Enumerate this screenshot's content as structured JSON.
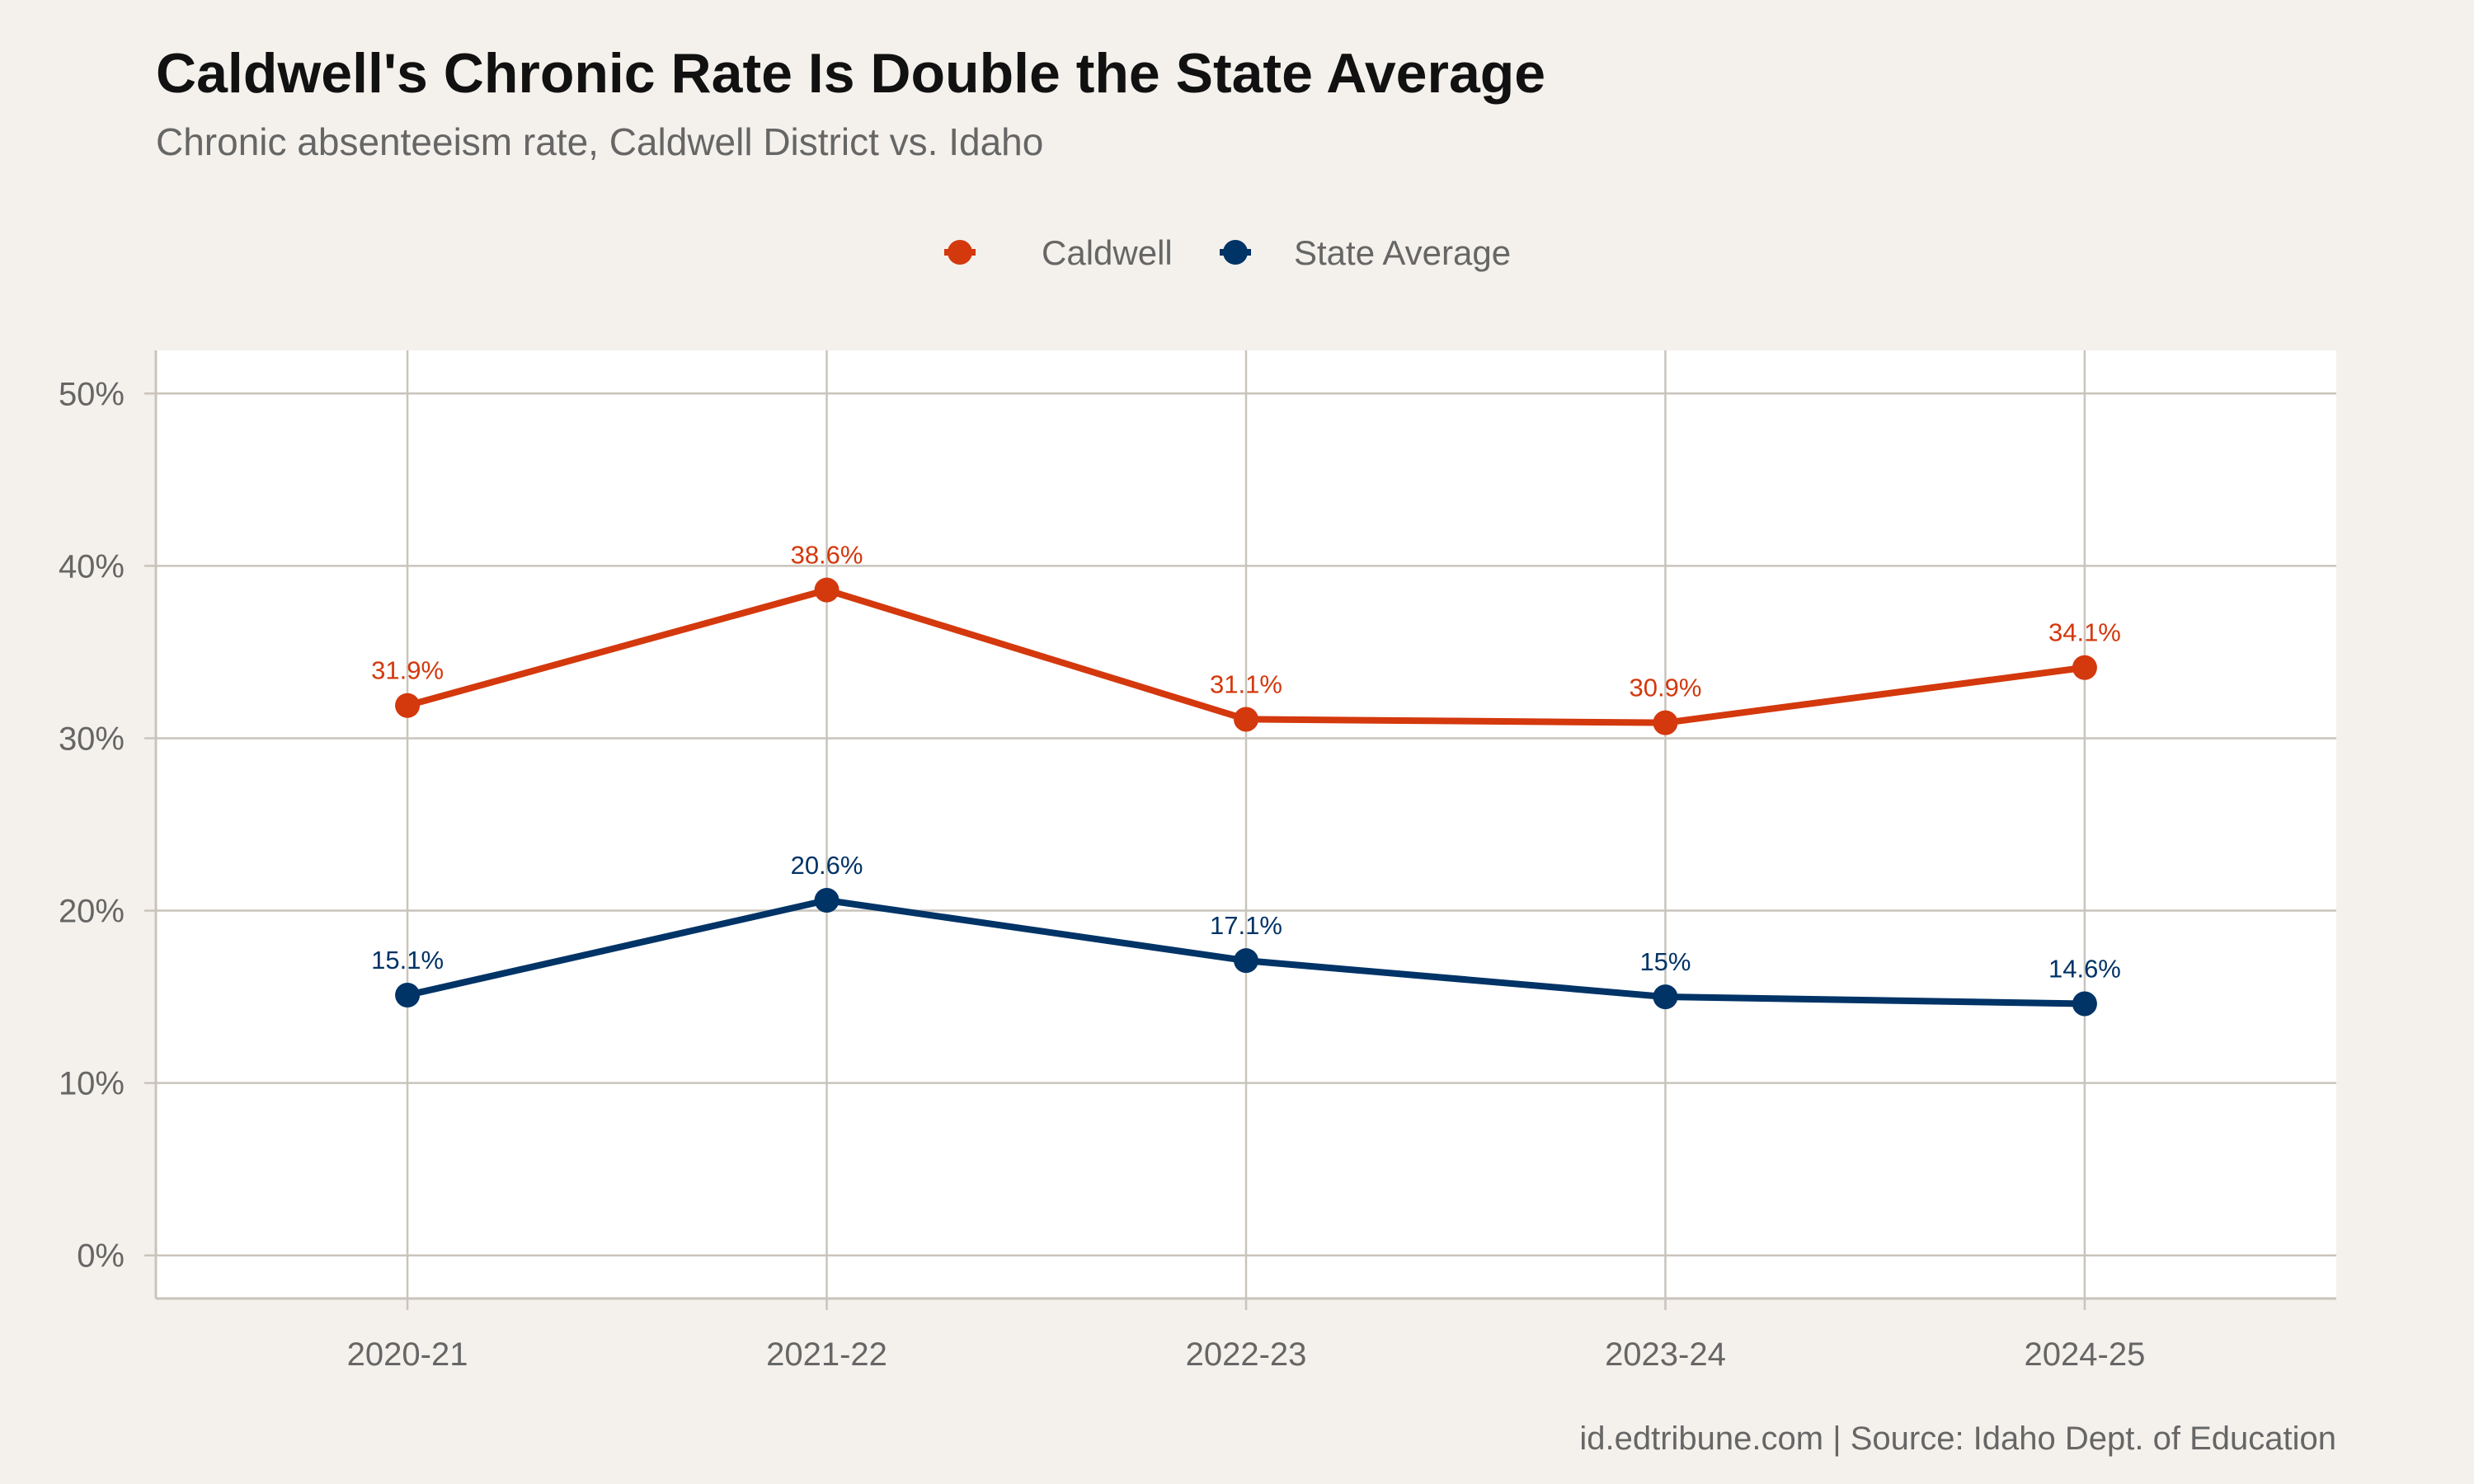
{
  "chart_data": {
    "type": "line",
    "title": "Caldwell's Chronic Rate Is Double the State Average",
    "subtitle": "Chronic absenteeism rate, Caldwell District vs. Idaho",
    "caption": "id.edtribune.com | Source: Idaho Dept. of Education",
    "xlabel": "",
    "ylabel": "",
    "categories": [
      "2020-21",
      "2021-22",
      "2022-23",
      "2023-24",
      "2024-25"
    ],
    "ylim": [
      0,
      50
    ],
    "yticks": [
      0,
      10,
      20,
      30,
      40,
      50
    ],
    "ytick_labels": [
      "0%",
      "10%",
      "20%",
      "30%",
      "40%",
      "50%"
    ],
    "grid": true,
    "legend_position": "top",
    "series": [
      {
        "name": "Caldwell",
        "color": "#D4380D",
        "values": [
          31.9,
          38.6,
          31.1,
          30.9,
          34.1
        ],
        "labels": [
          "31.9%",
          "38.6%",
          "31.1%",
          "30.9%",
          "34.1%"
        ]
      },
      {
        "name": "State Average",
        "color": "#003366",
        "values": [
          15.1,
          20.6,
          17.1,
          15.0,
          14.6
        ],
        "labels": [
          "15.1%",
          "20.6%",
          "17.1%",
          "15%",
          "14.6%"
        ]
      }
    ],
    "colors": {
      "background": "#F4F1EC",
      "panel": "#FFFFFF",
      "grid": "#C9C4BB",
      "text": "#666666",
      "title": "#111111"
    }
  }
}
